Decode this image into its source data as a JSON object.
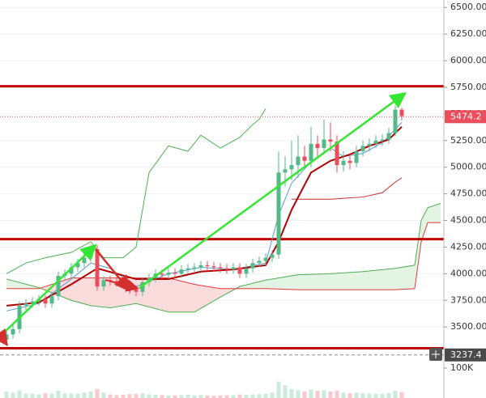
{
  "chart_data": {
    "type": "candlestick",
    "open": [
      3380,
      3430,
      3480,
      3700,
      3720,
      3740,
      3760,
      3720,
      3790,
      3980,
      4000,
      4060,
      4100,
      4150,
      4230,
      3880,
      3940,
      3930,
      3920,
      3900,
      3850,
      3830,
      3920,
      3960,
      4000,
      3990,
      4010,
      4000,
      4040,
      4050,
      4060,
      4080,
      4070,
      4060,
      4050,
      4040,
      4060,
      4000,
      4050,
      4100,
      4120,
      4150,
      4180,
      4950,
      4980,
      5020,
      5100,
      5060,
      5220,
      5180,
      5260,
      5240,
      5020,
      5060,
      5040,
      5150,
      5200,
      5220,
      5250,
      5260,
      5320,
      5540
    ],
    "high": [
      3470,
      3520,
      3740,
      3760,
      3780,
      3800,
      3800,
      3830,
      4020,
      4040,
      4100,
      4140,
      4190,
      4270,
      4270,
      3980,
      3980,
      3970,
      3960,
      3940,
      3890,
      3960,
      4000,
      4040,
      4040,
      4050,
      4050,
      4080,
      4090,
      4100,
      4120,
      4120,
      4110,
      4100,
      4090,
      4100,
      4100,
      4090,
      4140,
      4160,
      4190,
      4220,
      5150,
      5100,
      5250,
      5300,
      5200,
      5380,
      5300,
      5450,
      5420,
      5300,
      5150,
      5120,
      5200,
      5250,
      5270,
      5300,
      5310,
      5370,
      5580,
      5560
    ],
    "low": [
      3340,
      3390,
      3440,
      3660,
      3680,
      3700,
      3680,
      3680,
      3750,
      3940,
      3960,
      4020,
      4060,
      4110,
      3840,
      3840,
      3890,
      3880,
      3860,
      3810,
      3790,
      3790,
      3880,
      3920,
      3950,
      3950,
      3960,
      3960,
      4000,
      4010,
      4020,
      4030,
      4020,
      4010,
      4000,
      4000,
      3960,
      3960,
      4010,
      4060,
      4080,
      4110,
      4140,
      4820,
      4880,
      4900,
      5000,
      5000,
      5100,
      5120,
      5150,
      4950,
      4960,
      4980,
      5000,
      5100,
      5150,
      5180,
      5200,
      5220,
      5290,
      5440
    ],
    "close": [
      3430,
      3480,
      3700,
      3720,
      3740,
      3760,
      3720,
      3790,
      3980,
      4000,
      4060,
      4100,
      4150,
      4230,
      3880,
      3940,
      3930,
      3920,
      3900,
      3850,
      3830,
      3920,
      3960,
      4000,
      3990,
      4010,
      4000,
      4040,
      4050,
      4060,
      4080,
      4070,
      4060,
      4050,
      4040,
      4060,
      4000,
      4050,
      4100,
      4120,
      4150,
      4180,
      4950,
      4980,
      5020,
      5100,
      5060,
      5220,
      5180,
      5260,
      5240,
      5020,
      5060,
      5040,
      5150,
      5200,
      5220,
      5250,
      5260,
      5320,
      5540,
      5480
    ],
    "up_color": "#53b987",
    "down_color": "#eb4d5c",
    "ylim": [
      3190,
      6570
    ],
    "yticks": [
      {
        "value": 3500,
        "label": "3500.00"
      },
      {
        "value": 3750,
        "label": "3750.00"
      },
      {
        "value": 4000,
        "label": "4000.00"
      },
      {
        "value": 4250,
        "label": "4250.00"
      },
      {
        "value": 4500,
        "label": "4500.00"
      },
      {
        "value": 4750,
        "label": "4750.00"
      },
      {
        "value": 5000,
        "label": "5000.00"
      },
      {
        "value": 5250,
        "label": "5250.00"
      },
      {
        "value": 5500,
        "label": "5500.00"
      },
      {
        "value": 5750,
        "label": "5750.00"
      },
      {
        "value": 6000,
        "label": "6000.00"
      },
      {
        "value": 6250,
        "label": "6250.00"
      },
      {
        "value": 6500,
        "label": "6500.00"
      }
    ],
    "grid": true,
    "last_price": 5474.2,
    "crosshair_price": 3237.4,
    "levels": [
      5760,
      4325,
      3300
    ],
    "level_color": "#c00000",
    "overlays": [
      {
        "color": "#4caf50",
        "x": [
          0,
          3,
          6,
          10,
          13,
          15,
          18,
          20,
          22,
          25,
          28,
          30,
          33,
          36,
          38,
          39,
          40
        ],
        "values": [
          4000,
          4100,
          4150,
          4200,
          4300,
          4150,
          4150,
          4250,
          4950,
          5200,
          5150,
          5300,
          5180,
          5280,
          5400,
          5450,
          5550
        ]
      },
      {
        "color": "#c62828",
        "x": [
          44,
          50,
          55,
          58,
          60,
          61
        ],
        "values": [
          4700,
          4700,
          4720,
          4760,
          4860,
          4900
        ]
      },
      {
        "color": "#5b9bd5",
        "x": [
          0,
          5,
          10,
          13,
          16,
          20,
          25,
          30,
          35,
          40,
          42,
          44,
          47,
          50,
          52,
          55,
          58,
          61
        ],
        "values": [
          3650,
          3720,
          3950,
          4100,
          4050,
          3880,
          4000,
          4060,
          4040,
          4100,
          4550,
          4850,
          5050,
          5180,
          5100,
          5130,
          5230,
          5420
        ]
      },
      {
        "color": "#b00000",
        "x": [
          0,
          5,
          10,
          14,
          20,
          25,
          30,
          35,
          40,
          42,
          44,
          47,
          50,
          53,
          56,
          59,
          61
        ],
        "values": [
          3700,
          3730,
          3900,
          4050,
          3950,
          3950,
          4020,
          4040,
          4080,
          4300,
          4600,
          4950,
          5060,
          5120,
          5200,
          5260,
          5380
        ]
      }
    ],
    "cloud": {
      "x": [
        0,
        5,
        10,
        13,
        16,
        20,
        25,
        29,
        33,
        36,
        40,
        45,
        50,
        55,
        60,
        63,
        64,
        65,
        67
      ],
      "span_a": [
        3950,
        3870,
        3750,
        3700,
        3680,
        3720,
        3640,
        3640,
        3780,
        3880,
        3940,
        3990,
        4000,
        4020,
        4050,
        4080,
        4500,
        4620,
        4660
      ],
      "span_b": [
        3860,
        3860,
        3960,
        3960,
        3960,
        3960,
        3960,
        3900,
        3860,
        3860,
        3860,
        3850,
        3850,
        3850,
        3850,
        3860,
        4300,
        4480,
        4480
      ],
      "a_color": "#4caf50",
      "b_color": "#e53935",
      "up_fill": "#e3f4e4",
      "down_fill": "#fbdcdc"
    },
    "volume": {
      "values": [
        22000,
        18000,
        26000,
        15000,
        14000,
        12000,
        16000,
        14000,
        24000,
        16000,
        15000,
        14000,
        18000,
        22000,
        30000,
        18000,
        12000,
        10000,
        11000,
        13000,
        14000,
        16000,
        12000,
        11000,
        10000,
        9000,
        9000,
        10000,
        11000,
        9000,
        10000,
        9000,
        8000,
        9000,
        9000,
        10000,
        12000,
        11000,
        12000,
        13000,
        14000,
        18000,
        55000,
        42000,
        30000,
        26000,
        22000,
        28000,
        24000,
        26000,
        22000,
        24000,
        18000,
        16000,
        18000,
        16000,
        15000,
        14000,
        14000,
        16000,
        24000,
        20000
      ],
      "ylim": [
        0,
        127000
      ],
      "yticks": [
        {
          "value": 100000,
          "label": "100K"
        }
      ]
    }
  }
}
